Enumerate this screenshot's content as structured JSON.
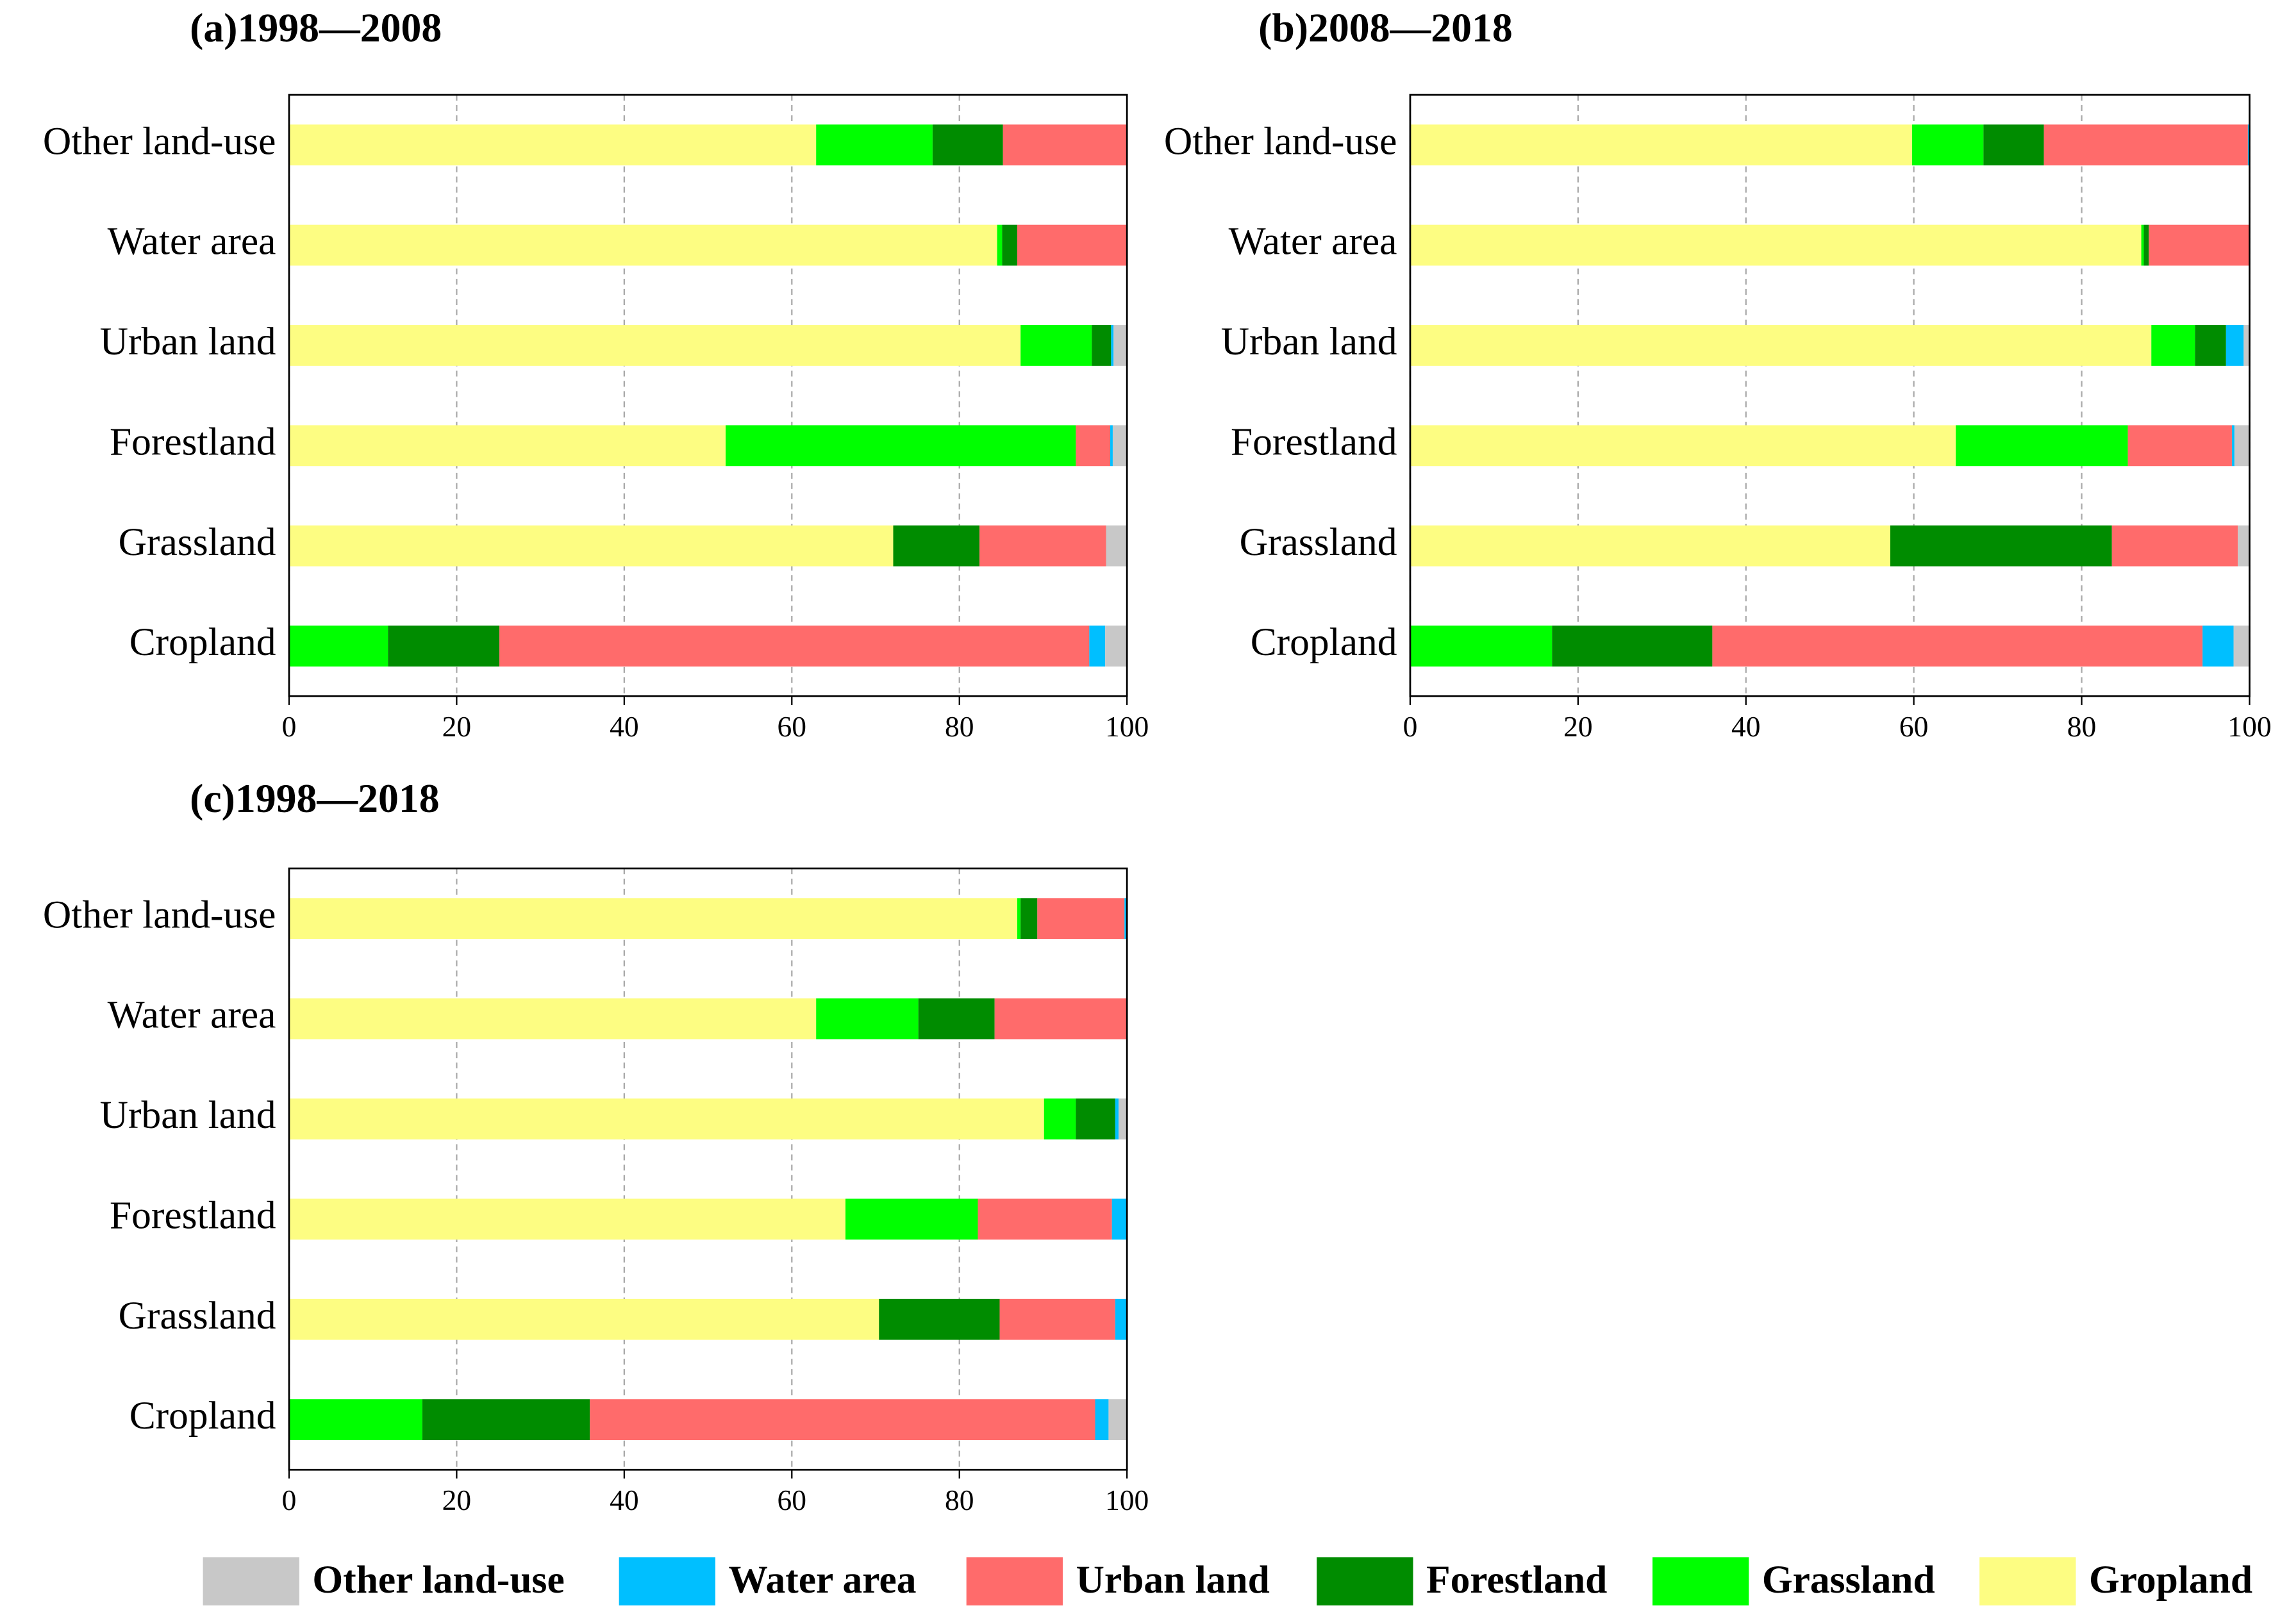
{
  "chart_data": [
    {
      "type": "stacked-barh",
      "title": "(a)1998—2008",
      "categories": [
        "Cropland",
        "Grassland",
        "Forestland",
        "Urban land",
        "Water area",
        "Other land-use"
      ],
      "xlim": [
        0,
        100
      ],
      "xticks": [
        0,
        20,
        40,
        60,
        80,
        100
      ],
      "grid": true,
      "series": [
        {
          "name": "Gropland",
          "color": "#fdfd82",
          "values": [
            0,
            72.1,
            52.1,
            87.3,
            84.5,
            62.9
          ]
        },
        {
          "name": "Grassland",
          "color": "#00ff00",
          "values": [
            11.8,
            0,
            41.8,
            8.5,
            0.6,
            13.9
          ]
        },
        {
          "name": "Forestland",
          "color": "#008c00",
          "values": [
            13.3,
            10.3,
            0,
            2.3,
            1.8,
            8.4
          ]
        },
        {
          "name": "Urban land",
          "color": "#ff6b6b",
          "values": [
            70.4,
            15.1,
            4.1,
            0,
            13.1,
            14.8
          ]
        },
        {
          "name": "Water area",
          "color": "#00bfff",
          "values": [
            1.9,
            0,
            0.3,
            0.3,
            0,
            0
          ]
        },
        {
          "name": "Other land-use",
          "color": "#c8c8c8",
          "values": [
            2.6,
            2.5,
            1.7,
            1.6,
            0,
            0
          ]
        }
      ]
    },
    {
      "type": "stacked-barh",
      "title": "(b)2008—2018",
      "categories": [
        "Cropland",
        "Grassland",
        "Forestland",
        "Urban land",
        "Water area",
        "Other land-use"
      ],
      "xlim": [
        0,
        100
      ],
      "xticks": [
        0,
        20,
        40,
        60,
        80,
        100
      ],
      "grid": true,
      "series": [
        {
          "name": "Gropland",
          "color": "#fdfd82",
          "values": [
            0,
            57.2,
            65.0,
            88.3,
            87.1,
            59.8
          ]
        },
        {
          "name": "Grassland",
          "color": "#00ff00",
          "values": [
            16.9,
            0,
            20.5,
            5.2,
            0.3,
            8.5
          ]
        },
        {
          "name": "Forestland",
          "color": "#008c00",
          "values": [
            19.1,
            26.4,
            0,
            3.7,
            0.6,
            7.2
          ]
        },
        {
          "name": "Urban land",
          "color": "#ff6b6b",
          "values": [
            58.4,
            15.0,
            12.4,
            0,
            12.0,
            24.3
          ]
        },
        {
          "name": "Water area",
          "color": "#00bfff",
          "values": [
            3.7,
            0,
            0.3,
            2.1,
            0,
            0.2
          ]
        },
        {
          "name": "Other land-use",
          "color": "#c8c8c8",
          "values": [
            1.9,
            1.4,
            1.8,
            0.7,
            0,
            0
          ]
        }
      ]
    },
    {
      "type": "stacked-barh",
      "title": "(c)1998—2018",
      "categories": [
        "Cropland",
        "Grassland",
        "Forestland",
        "Urban land",
        "Water area",
        "Other land-use"
      ],
      "xlim": [
        0,
        100
      ],
      "xticks": [
        0,
        20,
        40,
        60,
        80,
        100
      ],
      "grid": true,
      "series": [
        {
          "name": "Gropland",
          "color": "#fdfd82",
          "values": [
            0,
            70.4,
            66.4,
            90.1,
            62.9,
            86.9
          ]
        },
        {
          "name": "Grassland",
          "color": "#00ff00",
          "values": [
            15.9,
            0,
            15.8,
            3.8,
            12.2,
            0.4
          ]
        },
        {
          "name": "Forestland",
          "color": "#008c00",
          "values": [
            20.0,
            14.4,
            0,
            4.7,
            9.1,
            2.0
          ]
        },
        {
          "name": "Urban land",
          "color": "#ff6b6b",
          "values": [
            60.3,
            13.8,
            16.0,
            0,
            15.8,
            10.4
          ]
        },
        {
          "name": "Water area",
          "color": "#00bfff",
          "values": [
            1.6,
            1.4,
            1.8,
            0.4,
            0,
            0.3
          ]
        },
        {
          "name": "Other land-use",
          "color": "#c8c8c8",
          "values": [
            2.2,
            0,
            0,
            1.0,
            0,
            0
          ]
        }
      ]
    }
  ]
}
